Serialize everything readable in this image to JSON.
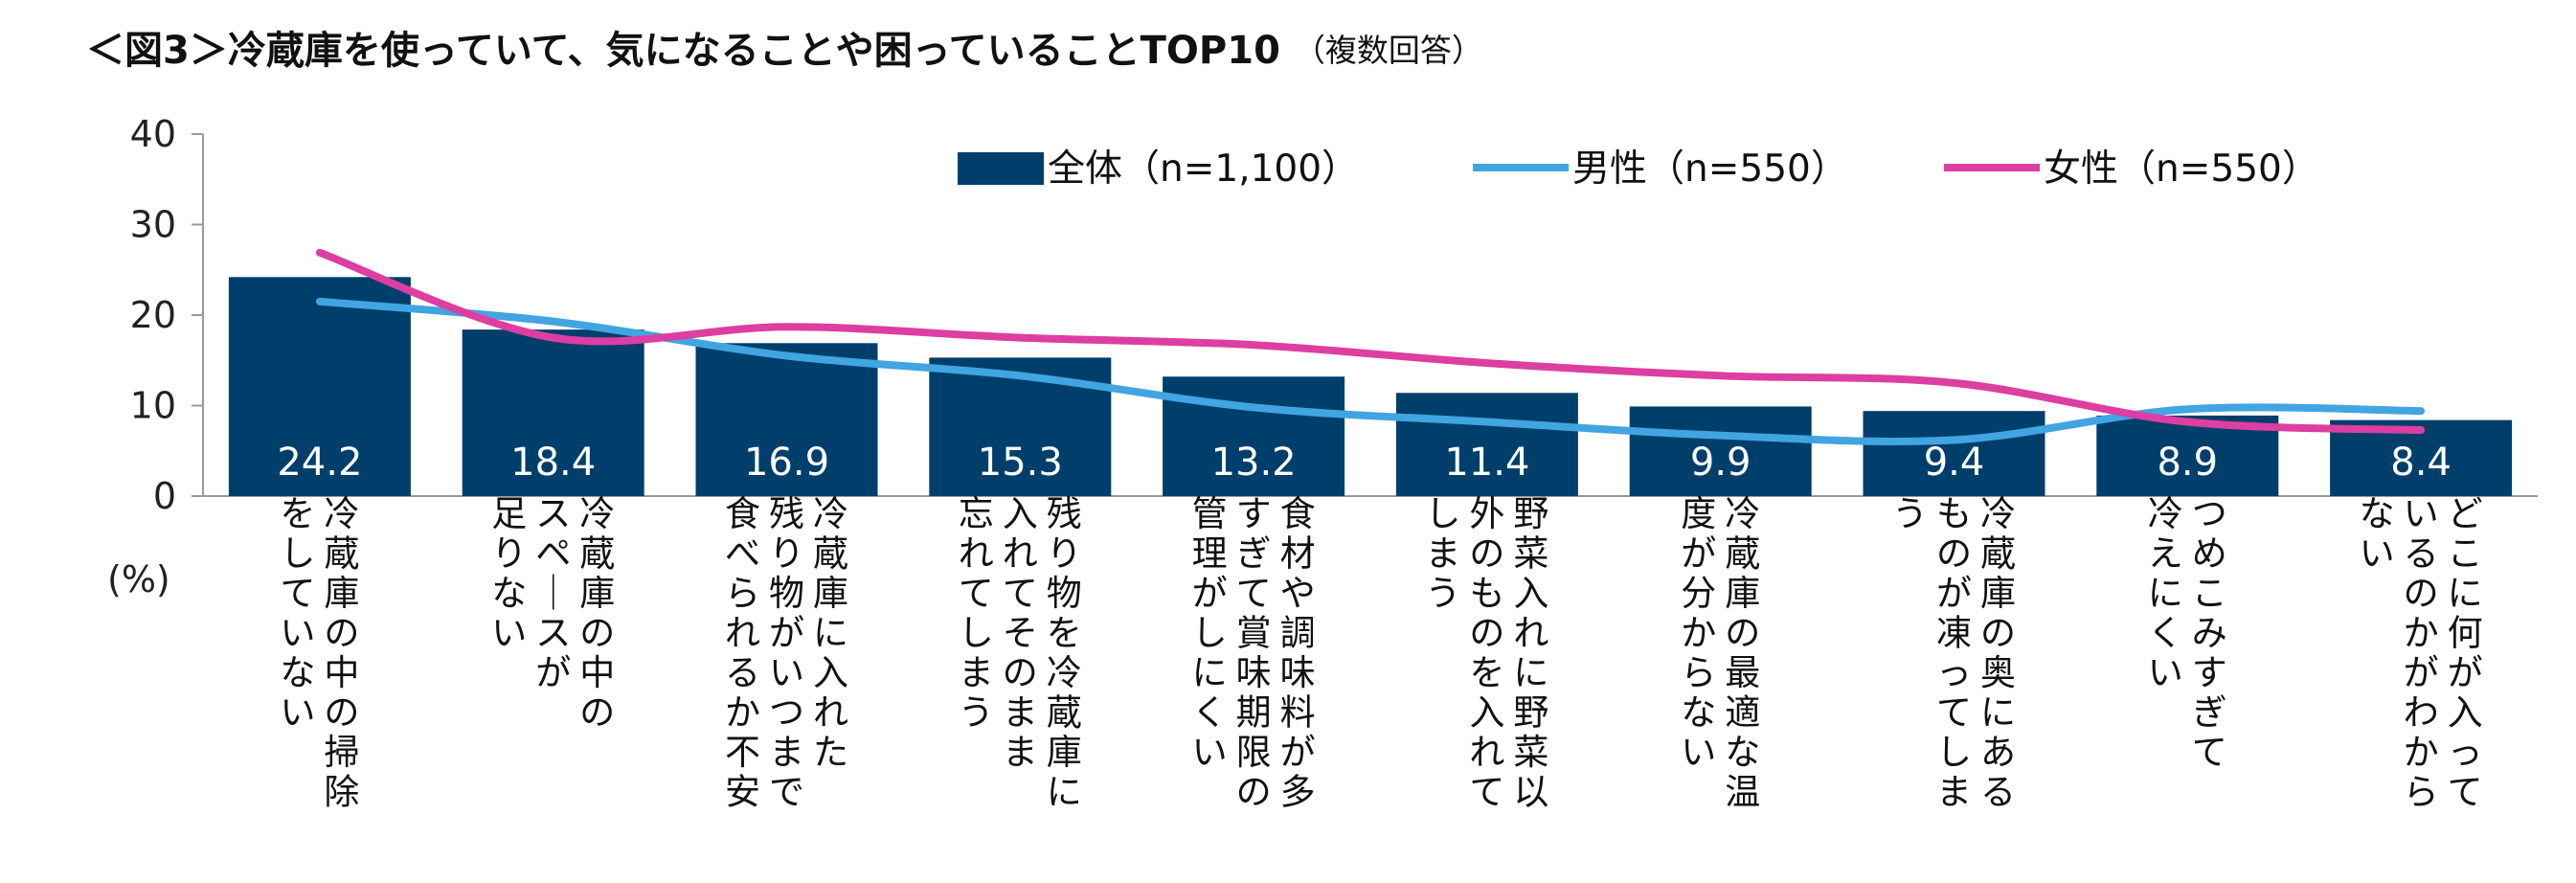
{
  "chart_data": {
    "type": "bar",
    "title": "＜図3＞冷蔵庫を使っていて、気になることや困っていることTOP10",
    "subtitle": "（複数回答）",
    "ylabel": "(%)",
    "ylim": [
      0,
      40
    ],
    "yticks": [
      "0",
      "10",
      "20",
      "30",
      "40"
    ],
    "grid": false,
    "legend_position": "top",
    "categories": [
      [
        "冷蔵庫の中の掃除",
        "をしていない"
      ],
      [
        "冷蔵庫の中の",
        "スペースが",
        "足りない"
      ],
      [
        "冷蔵庫に入れた",
        "残り物がいつまで",
        "食べられるか不安"
      ],
      [
        "残り物を冷蔵庫に",
        "入れてそのまま",
        "忘れてしまう"
      ],
      [
        "食材や調味料が多",
        "すぎて賞味期限の",
        "管理がしにくい"
      ],
      [
        "野菜入れに野菜以",
        "外のものを入れて",
        "しまう"
      ],
      [
        "冷蔵庫の最適な温",
        "度が分からない"
      ],
      [
        "冷蔵庫の奥にある",
        "ものが凍ってしま",
        "う"
      ],
      [
        "つめこみすぎて",
        "冷えにくい"
      ],
      [
        "どこに何が入って",
        "いるのかがわから",
        "ない"
      ]
    ],
    "series": [
      {
        "name": "全体（n=1,100）",
        "type": "bar",
        "color": "#003f6b",
        "values": [
          24.2,
          18.4,
          16.9,
          15.3,
          13.2,
          11.4,
          9.9,
          9.4,
          8.9,
          8.4
        ],
        "labels": [
          "24.2",
          "18.4",
          "16.9",
          "15.3",
          "13.2",
          "11.4",
          "9.9",
          "9.4",
          "8.9",
          "8.4"
        ]
      },
      {
        "name": "男性（n=550）",
        "type": "line",
        "color": "#41a5e1",
        "values": [
          21.5,
          19.3,
          15.5,
          13.3,
          9.8,
          8.2,
          6.7,
          6.2,
          9.6,
          9.4
        ]
      },
      {
        "name": "女性（n=550）",
        "type": "line",
        "color": "#dd3ea2",
        "values": [
          26.9,
          17.5,
          18.7,
          17.5,
          16.7,
          14.7,
          13.3,
          12.5,
          8.2,
          7.3
        ]
      }
    ]
  }
}
